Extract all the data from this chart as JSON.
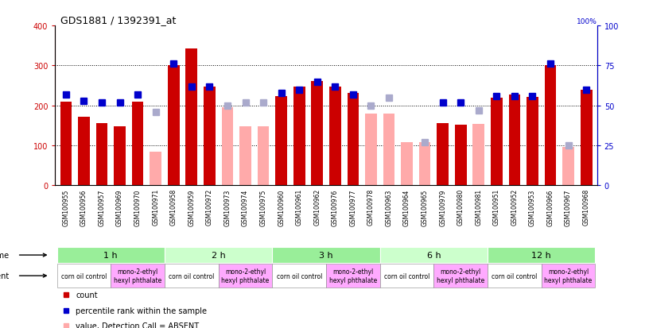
{
  "title": "GDS1881 / 1392391_at",
  "samples": [
    "GSM100955",
    "GSM100956",
    "GSM100957",
    "GSM100969",
    "GSM100970",
    "GSM100971",
    "GSM100958",
    "GSM100959",
    "GSM100972",
    "GSM100973",
    "GSM100974",
    "GSM100975",
    "GSM100960",
    "GSM100961",
    "GSM100962",
    "GSM100976",
    "GSM100977",
    "GSM100978",
    "GSM100963",
    "GSM100964",
    "GSM100965",
    "GSM100979",
    "GSM100980",
    "GSM100981",
    "GSM100951",
    "GSM100952",
    "GSM100953",
    "GSM100966",
    "GSM100967",
    "GSM100968"
  ],
  "count_values": [
    210,
    172,
    155,
    148,
    210,
    0,
    300,
    343,
    248,
    155,
    152,
    148,
    223,
    248,
    262,
    247,
    232,
    0,
    0,
    0,
    0,
    155,
    152,
    0,
    220,
    228,
    222,
    300,
    0,
    240
  ],
  "absent_value": [
    0,
    0,
    0,
    0,
    0,
    85,
    0,
    0,
    0,
    195,
    148,
    148,
    0,
    0,
    0,
    0,
    0,
    180,
    180,
    108,
    108,
    0,
    0,
    153,
    0,
    0,
    0,
    0,
    97,
    0
  ],
  "rank_values": [
    57,
    53,
    52,
    52,
    57,
    0,
    76,
    62,
    62,
    0,
    0,
    0,
    58,
    60,
    65,
    62,
    57,
    0,
    0,
    0,
    0,
    52,
    52,
    0,
    56,
    56,
    56,
    76,
    0,
    60
  ],
  "absent_rank": [
    0,
    0,
    0,
    0,
    0,
    46,
    0,
    0,
    0,
    50,
    52,
    52,
    0,
    0,
    0,
    0,
    0,
    50,
    55,
    0,
    27,
    0,
    0,
    47,
    0,
    0,
    0,
    0,
    25,
    0
  ],
  "absent_flags": [
    false,
    false,
    false,
    false,
    false,
    true,
    false,
    false,
    false,
    true,
    true,
    true,
    false,
    false,
    false,
    false,
    false,
    true,
    true,
    true,
    true,
    false,
    false,
    true,
    false,
    false,
    false,
    false,
    true,
    false
  ],
  "time_groups": [
    {
      "label": "1 h",
      "start": 0,
      "end": 6
    },
    {
      "label": "2 h",
      "start": 6,
      "end": 12
    },
    {
      "label": "3 h",
      "start": 12,
      "end": 18
    },
    {
      "label": "6 h",
      "start": 18,
      "end": 24
    },
    {
      "label": "12 h",
      "start": 24,
      "end": 30
    }
  ],
  "agent_groups": [
    {
      "label": "corn oil control",
      "start": 0,
      "end": 3,
      "is_control": true
    },
    {
      "label": "mono-2-ethyl\nhexyl phthalate",
      "start": 3,
      "end": 6,
      "is_control": false
    },
    {
      "label": "corn oil control",
      "start": 6,
      "end": 9,
      "is_control": true
    },
    {
      "label": "mono-2-ethyl\nhexyl phthalate",
      "start": 9,
      "end": 12,
      "is_control": false
    },
    {
      "label": "corn oil control",
      "start": 12,
      "end": 15,
      "is_control": true
    },
    {
      "label": "mono-2-ethyl\nhexyl phthalate",
      "start": 15,
      "end": 18,
      "is_control": false
    },
    {
      "label": "corn oil control",
      "start": 18,
      "end": 21,
      "is_control": true
    },
    {
      "label": "mono-2-ethyl\nhexyl phthalate",
      "start": 21,
      "end": 24,
      "is_control": false
    },
    {
      "label": "corn oil control",
      "start": 24,
      "end": 27,
      "is_control": true
    },
    {
      "label": "mono-2-ethyl\nhexyl phthalate",
      "start": 27,
      "end": 30,
      "is_control": false
    }
  ],
  "bar_color": "#cc0000",
  "absent_bar_color": "#ffaaaa",
  "rank_color": "#0000cc",
  "absent_rank_color": "#aaaacc",
  "bg_color": "#ffffff",
  "plot_bg": "#ffffff",
  "ylim_left": [
    0,
    400
  ],
  "ylim_right": [
    0,
    100
  ],
  "yticks_left": [
    0,
    100,
    200,
    300,
    400
  ],
  "yticks_right": [
    0,
    25,
    50,
    75,
    100
  ],
  "grid_values": [
    100,
    200,
    300
  ],
  "time_colors": [
    "#99ee99",
    "#ccffcc"
  ],
  "agent_control_color": "#ffffff",
  "agent_treat_color": "#ffaaff",
  "sample_bg_color": "#cccccc"
}
